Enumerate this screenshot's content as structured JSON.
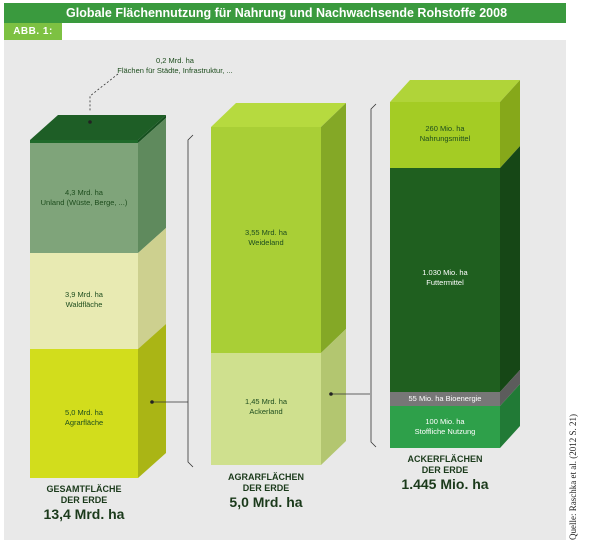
{
  "title": "Globale Flächennutzung für Nahrung und Nachwachsende Rohstoffe 2008",
  "figure_tab": "ABB. 1:",
  "source": "Quelle: Raschka et al. (2012 S. 21)",
  "colors": {
    "title_bar": "#3a9a3e",
    "tab": "#7dc142",
    "panel": "#e9e9e9",
    "city": "#1f6a2a",
    "unland": "#7fa47a",
    "wald": "#e8eab2",
    "agrar": "#d2dd1c",
    "weide": "#a9cf36",
    "acker_light": "#cfe08e",
    "nahrung": "#a4cc24",
    "futter": "#1f5f1f",
    "bioenergie": "#777777",
    "stofflich": "#2ea04a"
  },
  "columns": {
    "gesamt": {
      "caption_line1": "GESAMTFLÄCHE",
      "caption_line2": "DER ERDE",
      "total": "13,4 Mrd. ha",
      "segments": {
        "city": {
          "value": "0,2 Mrd. ha",
          "label": "Flächen für Städte, Infrastruktur, ..."
        },
        "unland": {
          "value": "4,3 Mrd. ha",
          "label": "Unland (Wüste, Berge, ...)"
        },
        "wald": {
          "value": "3,9 Mrd. ha",
          "label": "Waldfläche"
        },
        "agrar": {
          "value": "5,0 Mrd. ha",
          "label": "Agrarfläche"
        }
      }
    },
    "agrar": {
      "caption_line1": "AGRARFLÄCHEN",
      "caption_line2": "DER ERDE",
      "total": "5,0 Mrd. ha",
      "segments": {
        "weide": {
          "value": "3,55 Mrd. ha",
          "label": "Weideland"
        },
        "acker": {
          "value": "1,45 Mrd. ha",
          "label": "Ackerland"
        }
      }
    },
    "acker": {
      "caption_line1": "ACKERFLÄCHEN",
      "caption_line2": "DER ERDE",
      "total": "1.445 Mio. ha",
      "segments": {
        "nahrung": {
          "value": "260 Mio. ha",
          "label": "Nahrungsmittel"
        },
        "futter": {
          "value": "1.030 Mio. ha",
          "label": "Futtermittel"
        },
        "bioenergie": {
          "label": "55 Mio. ha Bioenergie"
        },
        "stofflich": {
          "value": "100 Mio. ha",
          "label": "Stoffliche Nutzung"
        }
      }
    }
  }
}
